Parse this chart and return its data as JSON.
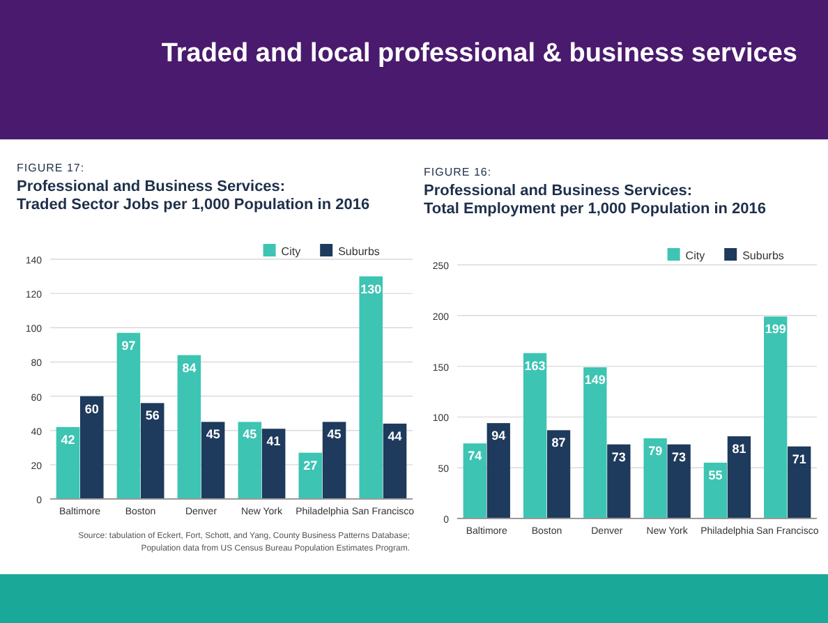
{
  "chart_data": [
    {
      "type": "bar",
      "subtitle": "FIGURE 17:",
      "title": "Professional and Business Services:\nTraded Sector Jobs per 1,000 Population in 2016",
      "categories": [
        "Baltimore",
        "Boston",
        "Denver",
        "New York",
        "Philadelphia",
        "San Francisco"
      ],
      "series": [
        {
          "name": "City",
          "color": "#3dc4b3",
          "values": [
            42,
            97,
            84,
            45,
            27,
            130
          ]
        },
        {
          "name": "Suburbs",
          "color": "#1e3a5c",
          "values": [
            60,
            56,
            45,
            41,
            45,
            44
          ]
        }
      ],
      "ylim": [
        0,
        140
      ],
      "yticks": [
        0,
        20,
        40,
        60,
        80,
        100,
        120,
        140
      ],
      "grid": "y",
      "legend": "top right",
      "data_labels": true,
      "annotations": [
        "Traded and local professional & business services",
        "Source: tabulation of Eckert, Fort, Schott, and Yang, County Business Patterns Database;\nPopulation data from US Census Bureau Population Estimates Program."
      ]
    },
    {
      "type": "bar",
      "subtitle": "FIGURE 16:",
      "title": "Professional and Business Services:\nTotal Employment per 1,000 Population in 2016",
      "categories": [
        "Baltimore",
        "Boston",
        "Denver",
        "New York",
        "Philadelphia",
        "San Francisco"
      ],
      "series": [
        {
          "name": "City",
          "color": "#3dc4b3",
          "values": [
            74,
            163,
            149,
            79,
            55,
            199
          ]
        },
        {
          "name": "Suburbs",
          "color": "#1e3a5c",
          "values": [
            94,
            87,
            73,
            73,
            81,
            71
          ]
        }
      ],
      "ylim": [
        0,
        250
      ],
      "yticks": [
        0,
        50,
        100,
        150,
        200,
        250
      ],
      "grid": "y",
      "legend": "top right",
      "data_labels": true
    }
  ]
}
